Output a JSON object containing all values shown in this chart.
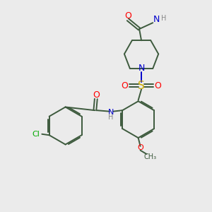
{
  "bg_color": "#ebebeb",
  "bond_color": "#3d5a3d",
  "colors": {
    "O": "#ff0000",
    "N": "#0000cc",
    "S": "#ccaa00",
    "Cl": "#00aa00",
    "H": "#888888",
    "C": "#3d5a3d"
  }
}
